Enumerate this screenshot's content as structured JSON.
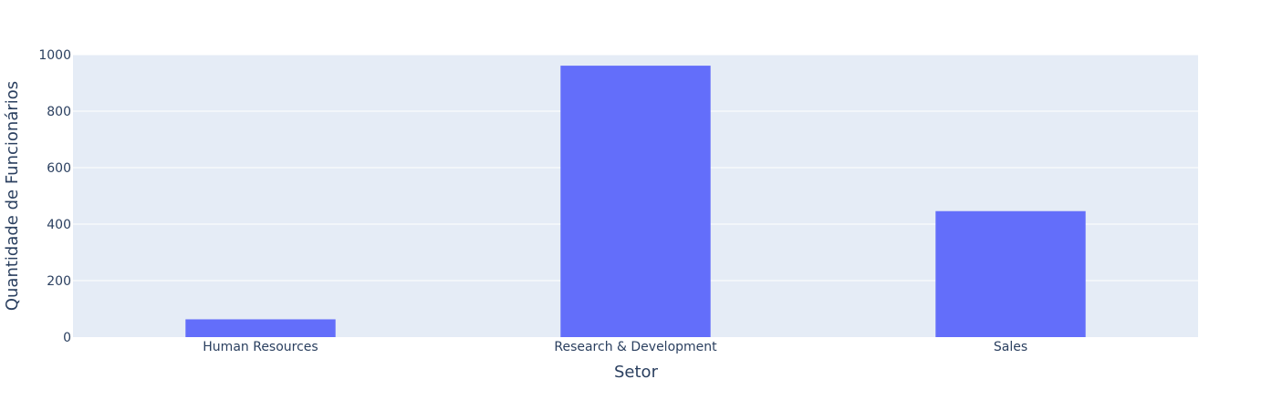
{
  "chart_data": {
    "type": "bar",
    "categories": [
      "Human Resources",
      "Research & Development",
      "Sales"
    ],
    "values": [
      63,
      961,
      446
    ],
    "xlabel": "Setor",
    "ylabel": "Quantidade de Funcionários",
    "ylim": [
      0,
      1000
    ],
    "yticks": [
      0,
      200,
      400,
      600,
      800,
      1000
    ],
    "grid": true,
    "colors": {
      "bar": "#636efa",
      "plot_background": "#e5ecf6",
      "gridline": "#ffffff",
      "text": "#2a3f5f"
    }
  }
}
